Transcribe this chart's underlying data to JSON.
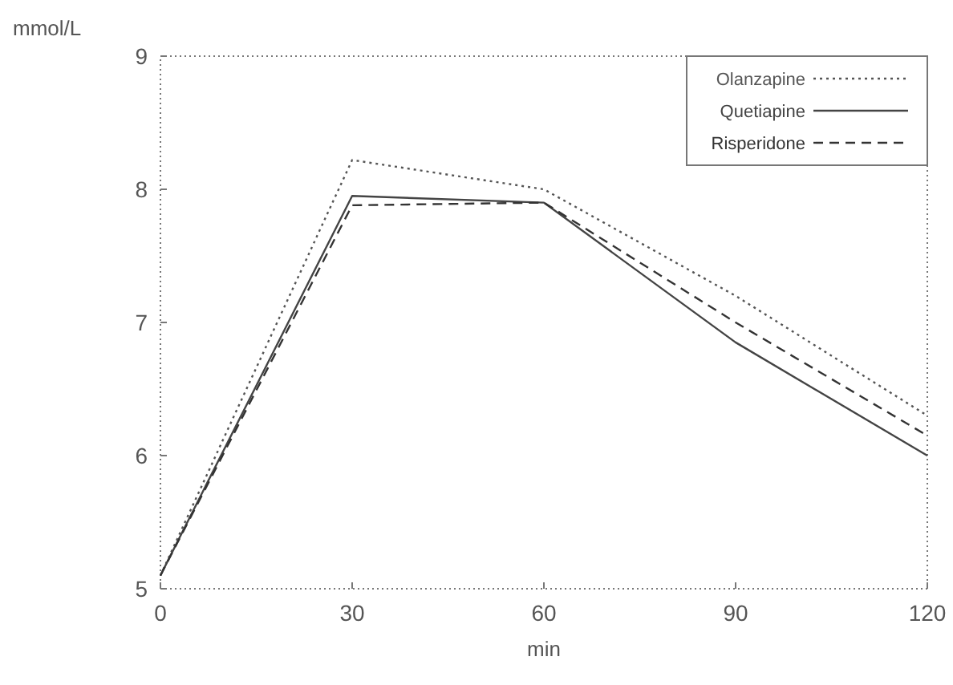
{
  "chart_data": {
    "type": "line",
    "xlabel": "min",
    "ylabel": "mmol/L",
    "x": [
      0,
      30,
      60,
      90,
      120
    ],
    "series": [
      {
        "name": "Olanzapine",
        "color": "#555555",
        "line_style": "dotted",
        "values": [
          5.1,
          8.22,
          8.0,
          7.2,
          6.3
        ]
      },
      {
        "name": "Quetiapine",
        "color": "#444444",
        "line_style": "solid",
        "values": [
          5.1,
          7.95,
          7.9,
          6.85,
          6.0
        ]
      },
      {
        "name": "Risperidone",
        "color": "#333333",
        "line_style": "dashed",
        "values": [
          5.1,
          7.88,
          7.9,
          7.0,
          6.15
        ]
      }
    ],
    "xlim": [
      0,
      120
    ],
    "xticks": [
      0,
      30,
      60,
      90,
      120
    ],
    "ylim": [
      5,
      9
    ],
    "yticks": [
      5,
      6,
      7,
      8,
      9
    ],
    "grid": false,
    "legend": "top right"
  }
}
